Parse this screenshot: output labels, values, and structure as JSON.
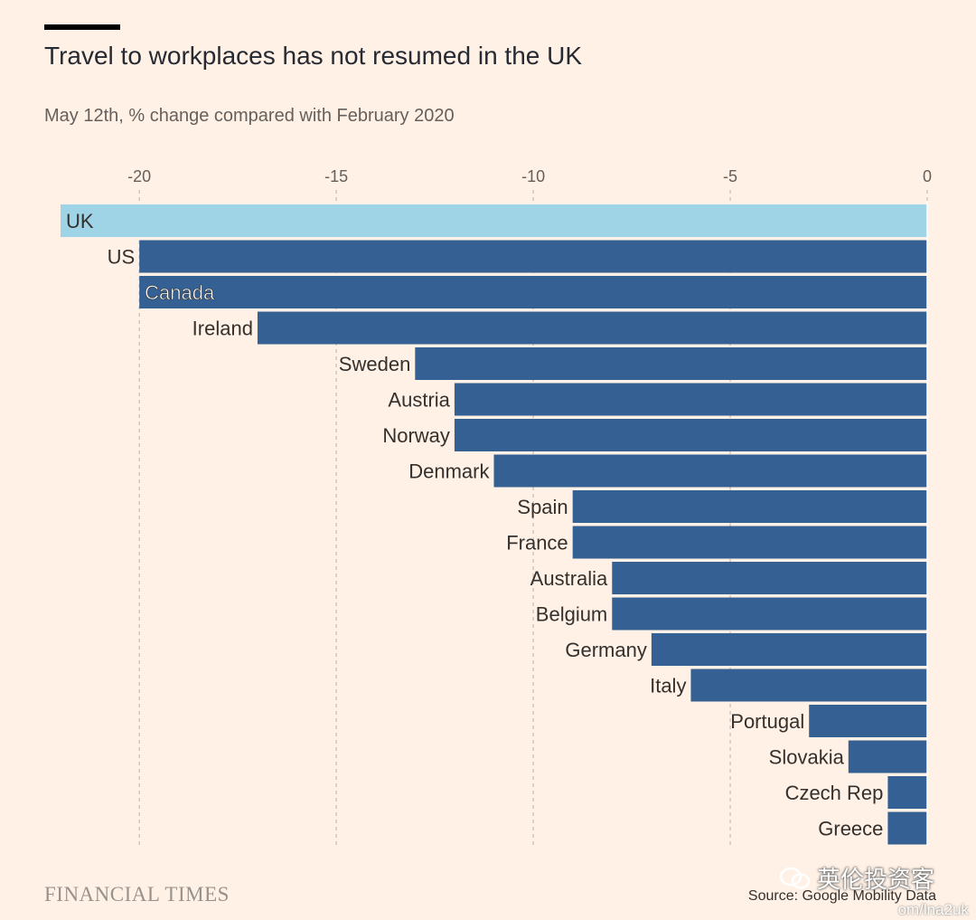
{
  "header": {
    "title": "Travel to workplaces has not resumed in the UK",
    "subtitle": "May 12th, % change compared with February 2020"
  },
  "footer": {
    "logo": "FINANCIAL TIMES",
    "source": "Source: Google Mobility Data",
    "watermark": "英伦投资客",
    "watermark_url": "om/lna2uk"
  },
  "colors": {
    "highlight": "#9fd3e6",
    "bar": "#356093",
    "grid": "#c7bdb4",
    "axis_text": "#66605c"
  },
  "chart_data": {
    "type": "bar",
    "orientation": "horizontal",
    "categories": [
      "UK",
      "US",
      "Canada",
      "Ireland",
      "Sweden",
      "Austria",
      "Norway",
      "Denmark",
      "Spain",
      "France",
      "Australia",
      "Belgium",
      "Germany",
      "Italy",
      "Portugal",
      "Slovakia",
      "Czech Rep",
      "Greece"
    ],
    "values": [
      -22,
      -20,
      -20,
      -17,
      -13,
      -12,
      -12,
      -11,
      -9,
      -9,
      -8,
      -8,
      -7,
      -6,
      -3,
      -2,
      -1,
      -1
    ],
    "highlight": "UK",
    "inside_labels": [
      "UK",
      "Canada"
    ],
    "xlim": [
      -22,
      0
    ],
    "xticks": [
      -20,
      -15,
      -10,
      -5,
      0
    ],
    "grid": "vertical-dashed",
    "title": "Travel to workplaces has not resumed in the UK",
    "subtitle": "May 12th, % change compared with February 2020"
  }
}
